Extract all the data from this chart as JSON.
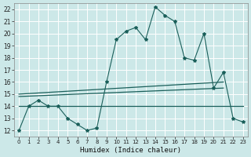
{
  "title": "",
  "xlabel": "Humidex (Indice chaleur)",
  "bg_color": "#cce8e8",
  "grid_color": "#aad4d4",
  "line_color": "#1a5f5a",
  "xlim": [
    -0.5,
    23.5
  ],
  "ylim": [
    11.5,
    22.5
  ],
  "xticks": [
    0,
    1,
    2,
    3,
    4,
    5,
    6,
    7,
    8,
    9,
    10,
    11,
    12,
    13,
    14,
    15,
    16,
    17,
    18,
    19,
    20,
    21,
    22,
    23
  ],
  "yticks": [
    12,
    13,
    14,
    15,
    16,
    17,
    18,
    19,
    20,
    21,
    22
  ],
  "curve1_x": [
    0,
    1,
    2,
    3,
    4,
    5,
    6,
    7,
    8,
    9,
    10,
    11,
    12,
    13,
    14,
    15,
    16,
    17,
    18,
    19,
    20,
    21,
    22,
    23
  ],
  "curve1_y": [
    12.0,
    14.0,
    14.5,
    14.0,
    14.0,
    13.0,
    12.5,
    12.0,
    12.2,
    16.0,
    19.5,
    20.2,
    20.5,
    19.5,
    22.2,
    21.5,
    21.0,
    18.0,
    17.8,
    20.0,
    15.5,
    16.8,
    13.0,
    12.7
  ],
  "curve2_x": [
    0,
    23
  ],
  "curve2_y": [
    14.0,
    14.0
  ],
  "curve3_x": [
    0,
    21
  ],
  "curve3_y": [
    14.8,
    15.5
  ],
  "curve4_x": [
    0,
    21
  ],
  "curve4_y": [
    15.0,
    16.0
  ]
}
